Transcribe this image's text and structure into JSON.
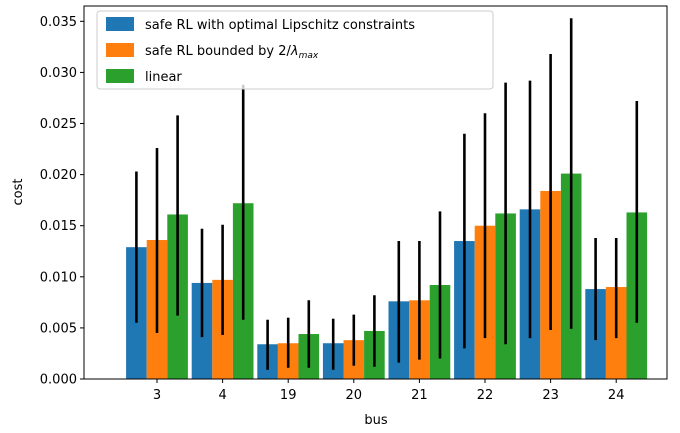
{
  "chart_data": {
    "type": "bar",
    "xlabel": "bus",
    "ylabel": "cost",
    "ylim": [
      0,
      0.0365
    ],
    "yticks": [
      "0.000",
      "0.005",
      "0.010",
      "0.015",
      "0.020",
      "0.025",
      "0.030",
      "0.035"
    ],
    "categories": [
      "3",
      "4",
      "19",
      "20",
      "21",
      "22",
      "23",
      "24"
    ],
    "legend_position": "top-left",
    "grid": false,
    "series": [
      {
        "name": "safe RL with optimal Lipschitz constraints",
        "legend_label_parts": [
          "safe RL with optimal Lipschitz constraints"
        ],
        "color": "#1f77b4",
        "values": [
          0.0129,
          0.0094,
          0.0034,
          0.0035,
          0.0076,
          0.0135,
          0.0166,
          0.0088
        ],
        "error_low": [
          0.0055,
          0.0041,
          0.0009,
          0.0009,
          0.0016,
          0.003,
          0.004,
          0.0038
        ],
        "error_high": [
          0.0203,
          0.0147,
          0.0058,
          0.0059,
          0.0135,
          0.024,
          0.0292,
          0.0138
        ]
      },
      {
        "name": "safe RL bounded by 2/λmax",
        "legend_label_parts": [
          "safe RL bounded by 2/",
          "λ",
          "max"
        ],
        "color": "#ff7f0e",
        "values": [
          0.0136,
          0.0097,
          0.0035,
          0.0038,
          0.0077,
          0.015,
          0.0184,
          0.009
        ],
        "error_low": [
          0.0045,
          0.0043,
          0.0011,
          0.0013,
          0.0019,
          0.004,
          0.0048,
          0.004
        ],
        "error_high": [
          0.0226,
          0.0151,
          0.006,
          0.0063,
          0.0135,
          0.026,
          0.0318,
          0.0138
        ]
      },
      {
        "name": "linear",
        "legend_label_parts": [
          "linear"
        ],
        "color": "#2ca02c",
        "values": [
          0.0161,
          0.0172,
          0.0044,
          0.0047,
          0.0092,
          0.0162,
          0.0201,
          0.0163
        ],
        "error_low": [
          0.0062,
          0.0058,
          0.0011,
          0.0012,
          0.002,
          0.0034,
          0.0049,
          0.0055
        ],
        "error_high": [
          0.0258,
          0.0288,
          0.0077,
          0.0082,
          0.0164,
          0.029,
          0.0353,
          0.0272
        ]
      }
    ]
  }
}
